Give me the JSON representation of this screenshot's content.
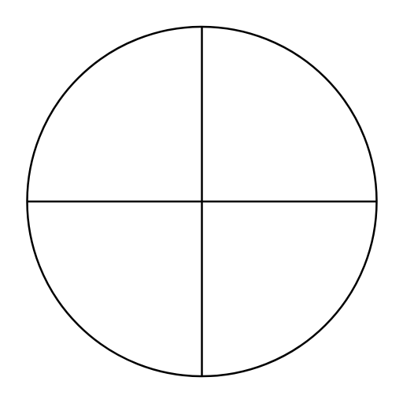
{
  "diagram": {
    "shape": "circle",
    "divisions": "quadrants",
    "quadrant_count": 4,
    "stroke_color": "#000000",
    "background_color": "#ffffff"
  }
}
